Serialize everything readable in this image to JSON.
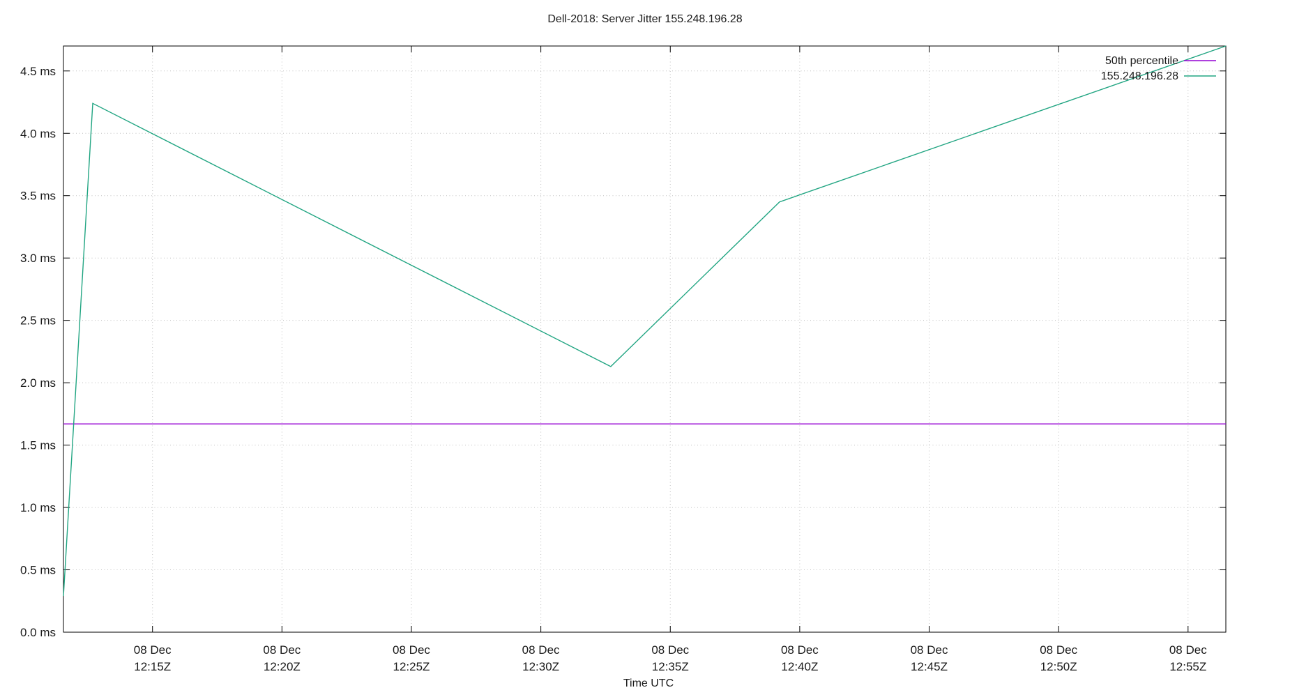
{
  "title": "Dell-2018: Server Jitter 155.248.196.28",
  "xlabel": "Time UTC",
  "colors": {
    "median_line": "#9400d3",
    "series_line": "#21a582",
    "grid": "#c0c0c0",
    "axis": "#000000",
    "text": "#1a1a1a"
  },
  "legend": [
    {
      "label": "50th percentile",
      "color": "#9400d3"
    },
    {
      "label": "155.248.196.28",
      "color": "#21a582"
    }
  ],
  "chart_data": {
    "type": "line",
    "title": "Dell-2018: Server Jitter 155.248.196.28",
    "xlabel": "Time UTC",
    "ylabel": "",
    "x_unit": "minutes after 12:00 UTC, 08 Dec",
    "xlim": [
      11.56,
      56.46
    ],
    "ylim": [
      0,
      4.7
    ],
    "grid": true,
    "legend_position": "top-right-inside",
    "x_ticks": [
      {
        "m": 15,
        "date": "08 Dec",
        "time": "12:15Z"
      },
      {
        "m": 20,
        "date": "08 Dec",
        "time": "12:20Z"
      },
      {
        "m": 25,
        "date": "08 Dec",
        "time": "12:25Z"
      },
      {
        "m": 30,
        "date": "08 Dec",
        "time": "12:30Z"
      },
      {
        "m": 35,
        "date": "08 Dec",
        "time": "12:35Z"
      },
      {
        "m": 40,
        "date": "08 Dec",
        "time": "12:40Z"
      },
      {
        "m": 45,
        "date": "08 Dec",
        "time": "12:45Z"
      },
      {
        "m": 50,
        "date": "08 Dec",
        "time": "12:50Z"
      },
      {
        "m": 55,
        "date": "08 Dec",
        "time": "12:55Z"
      }
    ],
    "y_ticks": [
      {
        "v": 0.0,
        "label": "0.0 ms"
      },
      {
        "v": 0.5,
        "label": "0.5 ms"
      },
      {
        "v": 1.0,
        "label": "1.0 ms"
      },
      {
        "v": 1.5,
        "label": "1.5 ms"
      },
      {
        "v": 2.0,
        "label": "2.0 ms"
      },
      {
        "v": 2.5,
        "label": "2.5 ms"
      },
      {
        "v": 3.0,
        "label": "3.0 ms"
      },
      {
        "v": 3.5,
        "label": "3.5 ms"
      },
      {
        "v": 4.0,
        "label": "4.0 ms"
      },
      {
        "v": 4.5,
        "label": "4.5 ms"
      }
    ],
    "series": [
      {
        "name": "50th percentile",
        "color": "#9400d3",
        "points": [
          [
            11.56,
            1.67
          ],
          [
            56.46,
            1.67
          ]
        ]
      },
      {
        "name": "155.248.196.28",
        "color": "#21a582",
        "points": [
          [
            11.56,
            0.29
          ],
          [
            12.69,
            4.24
          ],
          [
            32.7,
            2.13
          ],
          [
            39.22,
            3.45
          ],
          [
            56.46,
            4.7
          ]
        ]
      }
    ]
  }
}
